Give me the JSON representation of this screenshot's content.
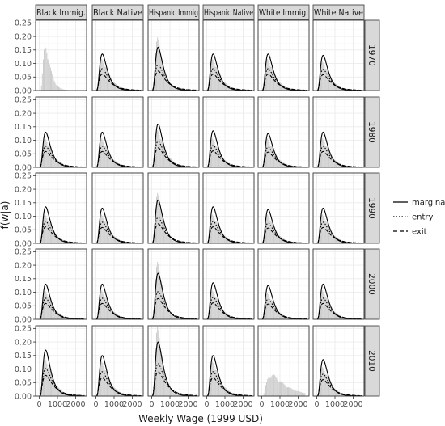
{
  "chart_data": {
    "type": "line",
    "subtype": "faceted density curves with histogram backgrounds",
    "xlabel": "Weekly Wage (1999 USD)",
    "ylabel": "f(w|a)",
    "facet_columns": [
      "Black Immig.",
      "Black Native",
      "Hispanic Immig",
      "Hispanic Native",
      "White Immig.",
      "White Native"
    ],
    "facet_rows": [
      "1970",
      "1980",
      "1990",
      "2000",
      "2010"
    ],
    "x_ticks": [
      0,
      1000,
      2000
    ],
    "x_tick_labels": [
      "0",
      "1000",
      "2000"
    ],
    "xlim": [
      -200,
      2600
    ],
    "y_ticks": [
      0.0,
      0.05,
      0.1,
      0.15,
      0.2,
      0.25
    ],
    "y_tick_labels": [
      "0.00",
      "0.05",
      "0.10",
      "0.15",
      "0.20",
      "0.25"
    ],
    "ylim": [
      0,
      0.26
    ],
    "grid": true,
    "legend": {
      "position": "right",
      "items": [
        {
          "label": "marginal",
          "linetype": "solid"
        },
        {
          "label": "entry",
          "linetype": "dotted"
        },
        {
          "label": "exit",
          "linetype": "dashed"
        }
      ]
    },
    "series_shape": {
      "mode_weekly_wage": 350,
      "marginal_peak_typical": 0.13,
      "entry_peak_typical": 0.08,
      "exit_peak_typical": 0.06
    },
    "panels": [
      {
        "row": "1970",
        "col": "Black Immig.",
        "curves": false,
        "hist_peak": 0.155
      },
      {
        "row": "1970",
        "col": "Black Native",
        "marginal_peak": 0.135,
        "hist_peak": 0.11
      },
      {
        "row": "1970",
        "col": "Hispanic Immig",
        "marginal_peak": 0.16,
        "hist_peak": 0.185
      },
      {
        "row": "1970",
        "col": "Hispanic Native",
        "marginal_peak": 0.135,
        "hist_peak": 0.11
      },
      {
        "row": "1970",
        "col": "White Immig.",
        "marginal_peak": 0.135,
        "hist_peak": 0.11
      },
      {
        "row": "1970",
        "col": "White Native",
        "marginal_peak": 0.13,
        "hist_peak": 0.1
      },
      {
        "row": "1980",
        "col": "Black Immig.",
        "marginal_peak": 0.13,
        "hist_peak": 0.1
      },
      {
        "row": "1980",
        "col": "Black Native",
        "marginal_peak": 0.13,
        "hist_peak": 0.1
      },
      {
        "row": "1980",
        "col": "Hispanic Immig",
        "marginal_peak": 0.16,
        "hist_peak": 0.13
      },
      {
        "row": "1980",
        "col": "Hispanic Native",
        "marginal_peak": 0.135,
        "hist_peak": 0.1
      },
      {
        "row": "1980",
        "col": "White Immig.",
        "marginal_peak": 0.125,
        "hist_peak": 0.1
      },
      {
        "row": "1980",
        "col": "White Native",
        "marginal_peak": 0.13,
        "hist_peak": 0.1
      },
      {
        "row": "1990",
        "col": "Black Immig.",
        "marginal_peak": 0.135,
        "hist_peak": 0.1
      },
      {
        "row": "1990",
        "col": "Black Native",
        "marginal_peak": 0.13,
        "hist_peak": 0.1
      },
      {
        "row": "1990",
        "col": "Hispanic Immig",
        "marginal_peak": 0.16,
        "hist_peak": 0.175
      },
      {
        "row": "1990",
        "col": "Hispanic Native",
        "marginal_peak": 0.135,
        "hist_peak": 0.1
      },
      {
        "row": "1990",
        "col": "White Immig.",
        "marginal_peak": 0.125,
        "hist_peak": 0.1
      },
      {
        "row": "1990",
        "col": "White Native",
        "marginal_peak": 0.13,
        "hist_peak": 0.1
      },
      {
        "row": "2000",
        "col": "Black Immig.",
        "marginal_peak": 0.13,
        "hist_peak": 0.1
      },
      {
        "row": "2000",
        "col": "Black Native",
        "marginal_peak": 0.13,
        "hist_peak": 0.1
      },
      {
        "row": "2000",
        "col": "Hispanic Immig",
        "marginal_peak": 0.17,
        "hist_peak": 0.2
      },
      {
        "row": "2000",
        "col": "Hispanic Native",
        "marginal_peak": 0.135,
        "hist_peak": 0.1
      },
      {
        "row": "2000",
        "col": "White Immig.",
        "marginal_peak": 0.125,
        "hist_peak": 0.09
      },
      {
        "row": "2000",
        "col": "White Native",
        "marginal_peak": 0.13,
        "hist_peak": 0.1
      },
      {
        "row": "2010",
        "col": "Black Immig.",
        "marginal_peak": 0.17,
        "hist_peak": 0.13
      },
      {
        "row": "2010",
        "col": "Black Native",
        "marginal_peak": 0.15,
        "hist_peak": 0.12
      },
      {
        "row": "2010",
        "col": "Hispanic Immig",
        "marginal_peak": 0.2,
        "hist_peak": 0.24
      },
      {
        "row": "2010",
        "col": "Hispanic Native",
        "marginal_peak": 0.15,
        "hist_peak": 0.12
      },
      {
        "row": "2010",
        "col": "White Immig.",
        "curves": false,
        "hist_peak": 0.075
      },
      {
        "row": "2010",
        "col": "White Native",
        "marginal_peak": 0.135,
        "hist_peak": 0.1
      }
    ]
  },
  "colors": {
    "panel_bg": "#ffffff",
    "panel_border": "#333333",
    "grid_major": "#ebebeb",
    "grid_minor": "#f5f5f5",
    "strip_bg": "#d9d9d9",
    "hist_fill": "#c8c8c8",
    "line": "#000000"
  }
}
